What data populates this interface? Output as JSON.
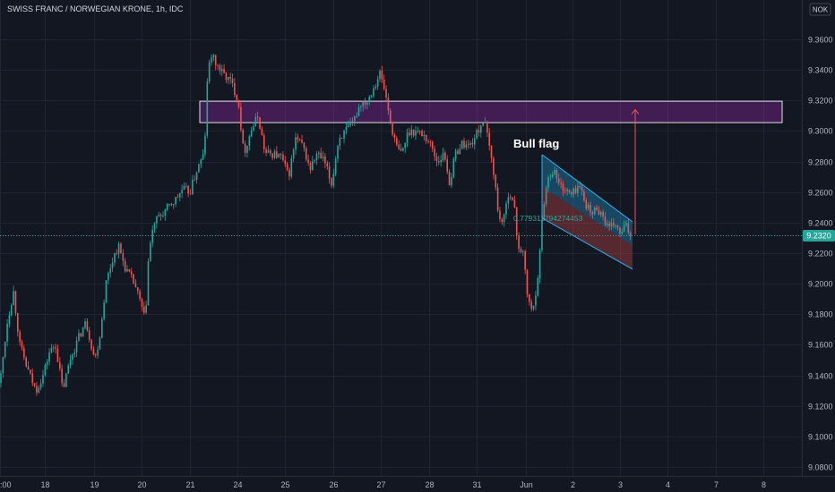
{
  "header": {
    "title": "SWISS FRANC / NORWEGIAN KRONE, 1h, IDC",
    "currency": "NOK"
  },
  "chart_data": {
    "type": "candlestick",
    "symbol": "SWISS FRANC / NORWEGIAN KRONE",
    "interval": "1h",
    "source": "IDC",
    "y_ticks": [
      "9.3600",
      "9.3400",
      "9.3200",
      "9.3000",
      "9.2800",
      "9.2600",
      "9.2400",
      "9.2200",
      "9.2000",
      "9.1800",
      "9.1600",
      "9.1400",
      "9.1200",
      "9.1000",
      "9.0800"
    ],
    "ylim": [
      9.075,
      9.37
    ],
    "x_ticks": [
      ":00",
      "18",
      "19",
      "20",
      "21",
      "24",
      "25",
      "26",
      "27",
      "28",
      "31",
      "Jun",
      "2",
      "3",
      "4",
      "7",
      "8"
    ],
    "current_price": "9.2320",
    "colors": {
      "up": "#26a69a",
      "down": "#ef5350",
      "background": "#131722",
      "grid": "#1f2433"
    },
    "path_points": [
      [
        0,
        9.135
      ],
      [
        8,
        9.175
      ],
      [
        15,
        9.195
      ],
      [
        22,
        9.16
      ],
      [
        30,
        9.145
      ],
      [
        40,
        9.13
      ],
      [
        48,
        9.14
      ],
      [
        55,
        9.155
      ],
      [
        62,
        9.16
      ],
      [
        70,
        9.13
      ],
      [
        78,
        9.15
      ],
      [
        88,
        9.165
      ],
      [
        96,
        9.175
      ],
      [
        106,
        9.15
      ],
      [
        112,
        9.168
      ],
      [
        118,
        9.2
      ],
      [
        125,
        9.215
      ],
      [
        132,
        9.225
      ],
      [
        140,
        9.21
      ],
      [
        150,
        9.2
      ],
      [
        158,
        9.185
      ],
      [
        162,
        9.175
      ],
      [
        166,
        9.22
      ],
      [
        172,
        9.24
      ],
      [
        180,
        9.245
      ],
      [
        188,
        9.25
      ],
      [
        196,
        9.255
      ],
      [
        204,
        9.262
      ],
      [
        212,
        9.26
      ],
      [
        220,
        9.275
      ],
      [
        228,
        9.285
      ],
      [
        232,
        9.34
      ],
      [
        236,
        9.35
      ],
      [
        240,
        9.345
      ],
      [
        248,
        9.338
      ],
      [
        258,
        9.332
      ],
      [
        266,
        9.32
      ],
      [
        272,
        9.285
      ],
      [
        280,
        9.3
      ],
      [
        288,
        9.31
      ],
      [
        296,
        9.285
      ],
      [
        305,
        9.285
      ],
      [
        314,
        9.283
      ],
      [
        322,
        9.27
      ],
      [
        330,
        9.295
      ],
      [
        338,
        9.29
      ],
      [
        346,
        9.275
      ],
      [
        354,
        9.285
      ],
      [
        362,
        9.28
      ],
      [
        370,
        9.265
      ],
      [
        378,
        9.295
      ],
      [
        386,
        9.3
      ],
      [
        394,
        9.305
      ],
      [
        402,
        9.318
      ],
      [
        410,
        9.32
      ],
      [
        418,
        9.33
      ],
      [
        424,
        9.338
      ],
      [
        430,
        9.325
      ],
      [
        436,
        9.305
      ],
      [
        442,
        9.29
      ],
      [
        448,
        9.285
      ],
      [
        456,
        9.3
      ],
      [
        464,
        9.3
      ],
      [
        472,
        9.298
      ],
      [
        480,
        9.292
      ],
      [
        488,
        9.28
      ],
      [
        496,
        9.285
      ],
      [
        502,
        9.265
      ],
      [
        508,
        9.285
      ],
      [
        516,
        9.292
      ],
      [
        524,
        9.29
      ],
      [
        532,
        9.298
      ],
      [
        540,
        9.308
      ],
      [
        546,
        9.29
      ],
      [
        552,
        9.27
      ],
      [
        556,
        9.245
      ],
      [
        562,
        9.24
      ],
      [
        568,
        9.262
      ],
      [
        574,
        9.25
      ],
      [
        578,
        9.225
      ],
      [
        584,
        9.22
      ],
      [
        588,
        9.195
      ],
      [
        594,
        9.18
      ],
      [
        598,
        9.195
      ],
      [
        602,
        9.215
      ],
      [
        606,
        9.25
      ],
      [
        612,
        9.27
      ],
      [
        618,
        9.275
      ],
      [
        624,
        9.265
      ],
      [
        630,
        9.262
      ],
      [
        638,
        9.258
      ],
      [
        646,
        9.265
      ],
      [
        652,
        9.255
      ],
      [
        660,
        9.245
      ],
      [
        666,
        9.25
      ],
      [
        672,
        9.245
      ],
      [
        680,
        9.235
      ],
      [
        686,
        9.24
      ],
      [
        692,
        9.232
      ],
      [
        698,
        9.238
      ],
      [
        704,
        9.232
      ]
    ]
  },
  "annotations": {
    "bull_flag": "Bull flag",
    "small_label": "0.779311794274453",
    "resistance_zone": [
      9.3055,
      9.3195
    ],
    "target_price": 9.314,
    "flag_channel": {
      "upper_start": 9.2845,
      "upper_end": 9.2405,
      "lower_start": 9.243,
      "lower_end": 9.2095,
      "mid_start": 9.2635,
      "mid_end": 9.225
    }
  }
}
